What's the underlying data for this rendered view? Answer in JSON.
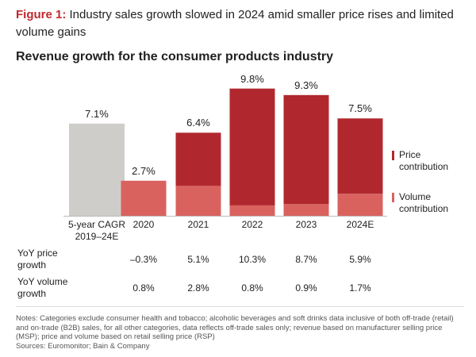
{
  "chart_data": {
    "type": "stacked-bar",
    "figure_label": "Figure 1:",
    "title": "Industry sales growth slowed in 2024 amid smaller price rises and limited volume gains",
    "subtitle": "Revenue growth for the consumer products industry",
    "categories": [
      "5-year CAGR 2019–24E",
      "2020",
      "2021",
      "2022",
      "2023",
      "2024E"
    ],
    "totals": {
      "color": "#cfcdc9",
      "values": [
        7.1,
        2.7,
        6.4,
        9.8,
        9.3,
        7.5
      ],
      "value_labels": [
        "7.1%",
        "2.7%",
        "6.4%",
        "9.8%",
        "9.3%",
        "7.5%"
      ]
    },
    "series": [
      {
        "name": "Volume contribution",
        "color": "#d9625f",
        "values": [
          null,
          2.7,
          2.3,
          0.8,
          0.9,
          1.7
        ]
      },
      {
        "name": "Price contribution",
        "color": "#b0282e",
        "values": [
          null,
          null,
          4.1,
          9.0,
          8.4,
          5.8
        ]
      }
    ],
    "ylim": [
      0,
      11
    ]
  },
  "table": {
    "rows": [
      {
        "label": "YoY price growth",
        "cells": [
          "–0.3%",
          "5.1%",
          "10.3%",
          "8.7%",
          "5.9%"
        ]
      },
      {
        "label": "YoY volume growth",
        "cells": [
          "0.8%",
          "2.8%",
          "0.8%",
          "0.9%",
          "1.7%"
        ]
      }
    ]
  },
  "notes": "Notes: Categories exclude consumer health and tobacco; alcoholic beverages and soft drinks data inclusive of both off-trade (retail) and on-trade (B2B) sales, for all other categories, data reflects off-trade sales only; revenue based on manufacturer selling price (MSP); price and volume based on retail selling price (RSP)",
  "sources": "Sources: Euromonitor; Bain & Company"
}
